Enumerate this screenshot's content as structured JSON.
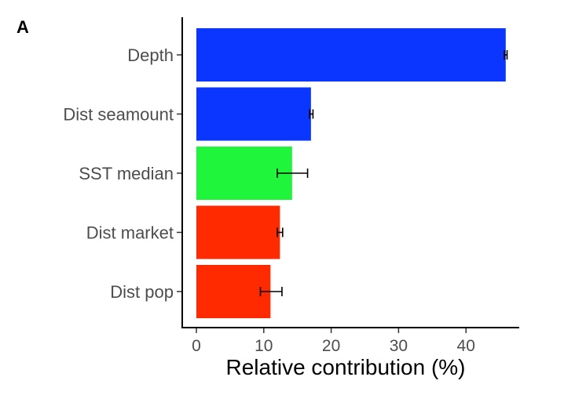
{
  "panel_label": "A",
  "chart_data": {
    "type": "bar",
    "orientation": "horizontal",
    "categories": [
      "Depth",
      "Dist seamount",
      "SST median",
      "Dist market",
      "Dist pop"
    ],
    "values": [
      45.9,
      17.0,
      14.2,
      12.4,
      11.0
    ],
    "errors": [
      [
        45.7,
        46.1
      ],
      [
        16.8,
        17.3
      ],
      [
        12.0,
        16.5
      ],
      [
        12.0,
        12.8
      ],
      [
        9.5,
        12.7
      ]
    ],
    "colors": [
      "#0a36ff",
      "#0a36ff",
      "#1ef53b",
      "#ff2a00",
      "#ff2a00"
    ],
    "xlabel": "Relative contribution (%)",
    "ylabel": "",
    "xlim": [
      -2.2,
      48
    ],
    "xticks": [
      0,
      10,
      20,
      30,
      40
    ],
    "grid": false,
    "legend": "none"
  }
}
